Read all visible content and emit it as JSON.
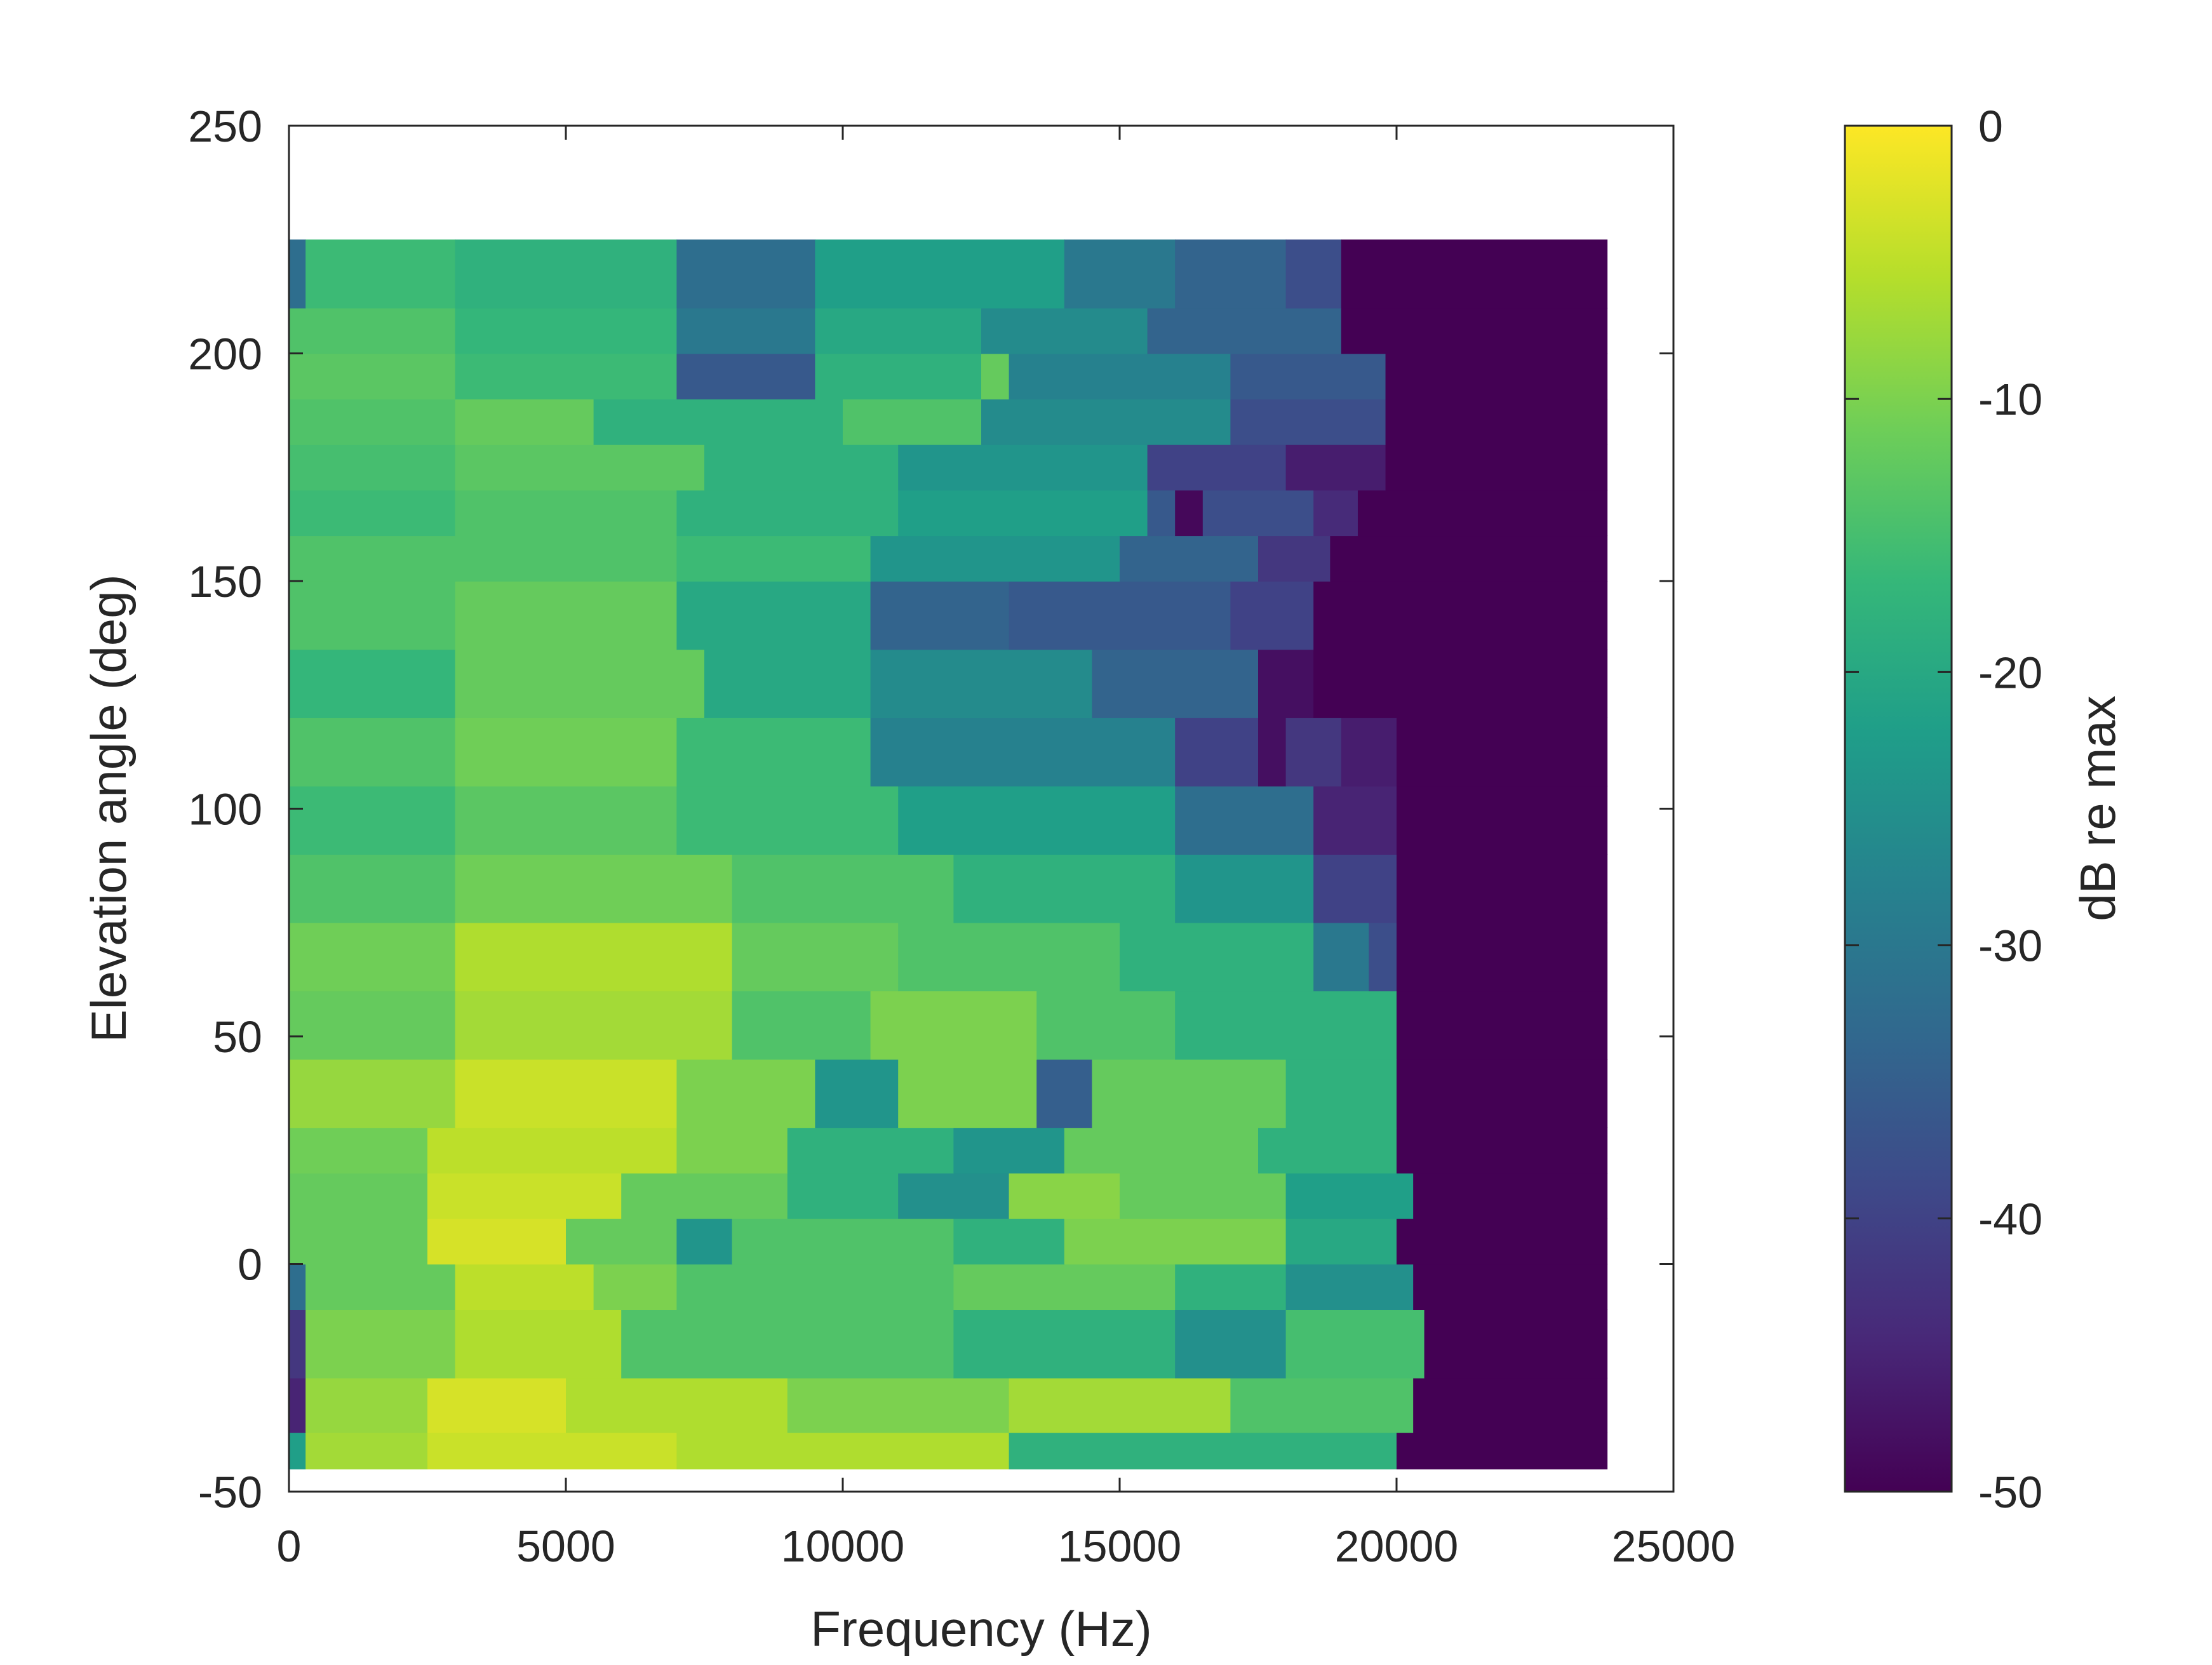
{
  "chart_data": {
    "type": "heatmap",
    "title": "",
    "xlabel": "Frequency (Hz)",
    "ylabel": "Elevation angle (deg)",
    "xlim": [
      0,
      25000
    ],
    "ylim": [
      -50,
      250
    ],
    "xticks": [
      0,
      5000,
      10000,
      15000,
      20000,
      25000
    ],
    "xtick_labels": [
      "0",
      "5000",
      "10000",
      "15000",
      "20000",
      "25000"
    ],
    "yticks": [
      -50,
      0,
      50,
      100,
      150,
      200,
      250
    ],
    "ytick_labels": [
      "-50",
      "0",
      "50",
      "100",
      "150",
      "200",
      "250"
    ],
    "x_range": [
      0,
      23800
    ],
    "rows": [
      {
        "y0": -45,
        "y1": -37,
        "segments": [
          [
            0,
            300,
            -22
          ],
          [
            300,
            2500,
            -7
          ],
          [
            2500,
            7000,
            -4
          ],
          [
            7000,
            13000,
            -6
          ],
          [
            13000,
            20000,
            -18
          ],
          [
            20000,
            23800,
            -50
          ]
        ]
      },
      {
        "y0": -37,
        "y1": -25,
        "segments": [
          [
            0,
            300,
            -45
          ],
          [
            300,
            2500,
            -8
          ],
          [
            2500,
            5000,
            -3
          ],
          [
            5000,
            9000,
            -6
          ],
          [
            9000,
            13000,
            -10
          ],
          [
            13000,
            17000,
            -7
          ],
          [
            17000,
            20300,
            -14
          ],
          [
            20300,
            23800,
            -50
          ]
        ]
      },
      {
        "y0": -25,
        "y1": -10,
        "segments": [
          [
            0,
            300,
            -42
          ],
          [
            300,
            3000,
            -10
          ],
          [
            3000,
            6000,
            -6
          ],
          [
            6000,
            12000,
            -14
          ],
          [
            12000,
            16000,
            -18
          ],
          [
            16000,
            18000,
            -25
          ],
          [
            18000,
            20500,
            -15
          ],
          [
            20500,
            23800,
            -50
          ]
        ]
      },
      {
        "y0": -10,
        "y1": 0,
        "segments": [
          [
            0,
            300,
            -32
          ],
          [
            300,
            3000,
            -12
          ],
          [
            3000,
            5500,
            -5
          ],
          [
            5500,
            7000,
            -10
          ],
          [
            7000,
            12000,
            -14
          ],
          [
            12000,
            16000,
            -12
          ],
          [
            16000,
            18000,
            -18
          ],
          [
            18000,
            20300,
            -25
          ],
          [
            20300,
            23800,
            -50
          ]
        ]
      },
      {
        "y0": 0,
        "y1": 10,
        "segments": [
          [
            0,
            2500,
            -12
          ],
          [
            2500,
            5000,
            -3
          ],
          [
            5000,
            7000,
            -12
          ],
          [
            7000,
            8000,
            -24
          ],
          [
            8000,
            12000,
            -14
          ],
          [
            12000,
            14000,
            -18
          ],
          [
            14000,
            18000,
            -10
          ],
          [
            18000,
            20000,
            -20
          ],
          [
            20000,
            23800,
            -50
          ]
        ]
      },
      {
        "y0": 10,
        "y1": 20,
        "segments": [
          [
            0,
            2500,
            -12
          ],
          [
            2500,
            6000,
            -4
          ],
          [
            6000,
            9000,
            -12
          ],
          [
            9000,
            11000,
            -18
          ],
          [
            11000,
            13000,
            -25
          ],
          [
            13000,
            15000,
            -9
          ],
          [
            15000,
            18000,
            -12
          ],
          [
            18000,
            20300,
            -22
          ],
          [
            20300,
            23800,
            -50
          ]
        ]
      },
      {
        "y0": 20,
        "y1": 30,
        "segments": [
          [
            0,
            2500,
            -11
          ],
          [
            2500,
            7000,
            -5
          ],
          [
            7000,
            9000,
            -10
          ],
          [
            9000,
            12000,
            -18
          ],
          [
            12000,
            14000,
            -24
          ],
          [
            14000,
            17500,
            -12
          ],
          [
            17500,
            20000,
            -18
          ],
          [
            20000,
            23800,
            -50
          ]
        ]
      },
      {
        "y0": 30,
        "y1": 45,
        "segments": [
          [
            0,
            3000,
            -8
          ],
          [
            3000,
            7000,
            -4
          ],
          [
            7000,
            9500,
            -10
          ],
          [
            9500,
            11000,
            -24
          ],
          [
            11000,
            13500,
            -10
          ],
          [
            13500,
            14500,
            -35
          ],
          [
            14500,
            18000,
            -12
          ],
          [
            18000,
            20000,
            -18
          ],
          [
            20000,
            23800,
            -50
          ]
        ]
      },
      {
        "y0": 45,
        "y1": 60,
        "segments": [
          [
            0,
            3000,
            -12
          ],
          [
            3000,
            8000,
            -7
          ],
          [
            8000,
            10500,
            -14
          ],
          [
            10500,
            13500,
            -10
          ],
          [
            13500,
            16000,
            -14
          ],
          [
            16000,
            20000,
            -18
          ],
          [
            20000,
            23800,
            -50
          ]
        ]
      },
      {
        "y0": 60,
        "y1": 75,
        "segments": [
          [
            0,
            3000,
            -11
          ],
          [
            3000,
            8000,
            -6
          ],
          [
            8000,
            11000,
            -12
          ],
          [
            11000,
            15000,
            -14
          ],
          [
            15000,
            18500,
            -18
          ],
          [
            18500,
            19500,
            -30
          ],
          [
            19500,
            20000,
            -38
          ],
          [
            20000,
            23800,
            -50
          ]
        ]
      },
      {
        "y0": 75,
        "y1": 90,
        "segments": [
          [
            0,
            3000,
            -14
          ],
          [
            3000,
            8000,
            -11
          ],
          [
            8000,
            12000,
            -14
          ],
          [
            12000,
            16000,
            -18
          ],
          [
            16000,
            18500,
            -24
          ],
          [
            18500,
            20000,
            -40
          ],
          [
            20000,
            23800,
            -50
          ]
        ]
      },
      {
        "y0": 90,
        "y1": 105,
        "segments": [
          [
            0,
            3000,
            -16
          ],
          [
            3000,
            7000,
            -13
          ],
          [
            7000,
            11000,
            -16
          ],
          [
            11000,
            16000,
            -22
          ],
          [
            16000,
            18500,
            -32
          ],
          [
            18500,
            20000,
            -45
          ],
          [
            20000,
            23800,
            -50
          ]
        ]
      },
      {
        "y0": 105,
        "y1": 120,
        "segments": [
          [
            0,
            3000,
            -14
          ],
          [
            3000,
            7000,
            -11
          ],
          [
            7000,
            10500,
            -16
          ],
          [
            10500,
            16000,
            -28
          ],
          [
            16000,
            17500,
            -40
          ],
          [
            17500,
            18000,
            -48
          ],
          [
            18000,
            19000,
            -42
          ],
          [
            19000,
            20000,
            -46
          ],
          [
            20000,
            23800,
            -50
          ]
        ]
      },
      {
        "y0": 120,
        "y1": 135,
        "segments": [
          [
            0,
            3000,
            -17
          ],
          [
            3000,
            7500,
            -12
          ],
          [
            7500,
            10500,
            -20
          ],
          [
            10500,
            14500,
            -26
          ],
          [
            14500,
            17500,
            -34
          ],
          [
            17500,
            18500,
            -48
          ],
          [
            18500,
            23800,
            -50
          ]
        ]
      },
      {
        "y0": 135,
        "y1": 150,
        "segments": [
          [
            0,
            3000,
            -14
          ],
          [
            3000,
            7000,
            -12
          ],
          [
            7000,
            10500,
            -20
          ],
          [
            10500,
            13000,
            -34
          ],
          [
            13000,
            17000,
            -36
          ],
          [
            17000,
            18500,
            -40
          ],
          [
            18500,
            23800,
            -50
          ]
        ]
      },
      {
        "y0": 150,
        "y1": 160,
        "segments": [
          [
            0,
            3000,
            -14
          ],
          [
            3000,
            7000,
            -14
          ],
          [
            7000,
            10500,
            -16
          ],
          [
            10500,
            15000,
            -24
          ],
          [
            15000,
            17500,
            -34
          ],
          [
            17500,
            18800,
            -42
          ],
          [
            18800,
            23800,
            -50
          ]
        ]
      },
      {
        "y0": 160,
        "y1": 170,
        "segments": [
          [
            0,
            3000,
            -16
          ],
          [
            3000,
            7000,
            -14
          ],
          [
            7000,
            11000,
            -18
          ],
          [
            11000,
            15500,
            -22
          ],
          [
            15500,
            16000,
            -36
          ],
          [
            16000,
            16500,
            -49
          ],
          [
            16500,
            18500,
            -38
          ],
          [
            18500,
            19300,
            -44
          ],
          [
            19300,
            23800,
            -50
          ]
        ]
      },
      {
        "y0": 170,
        "y1": 180,
        "segments": [
          [
            0,
            3000,
            -15
          ],
          [
            3000,
            7500,
            -13
          ],
          [
            7500,
            11000,
            -18
          ],
          [
            11000,
            15500,
            -24
          ],
          [
            15500,
            18000,
            -40
          ],
          [
            18000,
            19800,
            -46
          ],
          [
            19800,
            23800,
            -50
          ]
        ]
      },
      {
        "y0": 180,
        "y1": 190,
        "segments": [
          [
            0,
            3000,
            -14
          ],
          [
            3000,
            5500,
            -12
          ],
          [
            5500,
            10000,
            -18
          ],
          [
            10000,
            12500,
            -14
          ],
          [
            12500,
            17000,
            -26
          ],
          [
            17000,
            19800,
            -38
          ],
          [
            19800,
            23800,
            -50
          ]
        ]
      },
      {
        "y0": 190,
        "y1": 200,
        "segments": [
          [
            0,
            3000,
            -13
          ],
          [
            3000,
            7000,
            -16
          ],
          [
            7000,
            9500,
            -36
          ],
          [
            9500,
            12500,
            -18
          ],
          [
            12500,
            13000,
            -12
          ],
          [
            13000,
            17000,
            -28
          ],
          [
            17000,
            19800,
            -36
          ],
          [
            19800,
            23800,
            -50
          ]
        ]
      },
      {
        "y0": 200,
        "y1": 210,
        "segments": [
          [
            0,
            3000,
            -14
          ],
          [
            3000,
            7000,
            -17
          ],
          [
            7000,
            9500,
            -30
          ],
          [
            9500,
            12500,
            -20
          ],
          [
            12500,
            15500,
            -26
          ],
          [
            15500,
            19000,
            -34
          ],
          [
            19000,
            23800,
            -50
          ]
        ]
      },
      {
        "y0": 210,
        "y1": 225,
        "segments": [
          [
            0,
            300,
            -32
          ],
          [
            300,
            3000,
            -16
          ],
          [
            3000,
            7000,
            -18
          ],
          [
            7000,
            9500,
            -32
          ],
          [
            9500,
            14000,
            -22
          ],
          [
            14000,
            16000,
            -30
          ],
          [
            16000,
            18000,
            -34
          ],
          [
            18000,
            19000,
            -38
          ],
          [
            19000,
            23800,
            -50
          ]
        ]
      }
    ],
    "colorbar": {
      "label": "dB re max",
      "clim": [
        -50,
        0
      ],
      "ticks": [
        0,
        -10,
        -20,
        -30,
        -40,
        -50
      ],
      "tick_labels": [
        "0",
        "-10",
        "-20",
        "-30",
        "-40",
        "-50"
      ],
      "colormap": "viridis",
      "colormap_stops": [
        "#440154",
        "#482878",
        "#3e4989",
        "#31688e",
        "#26828e",
        "#1f9e89",
        "#35b779",
        "#6ece58",
        "#b5de2b",
        "#fde725"
      ]
    },
    "grid": false,
    "legend": "none"
  }
}
